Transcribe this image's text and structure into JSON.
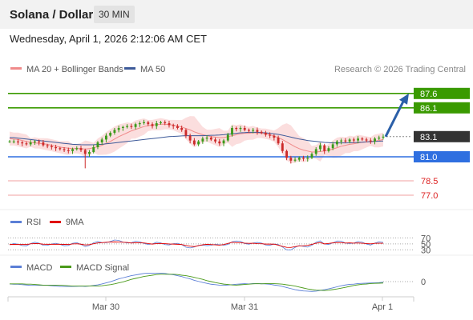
{
  "header": {
    "title": "Solana / Dollar",
    "interval": "30 MIN",
    "datetime": "Wednesday, April 1, 2026 2:12:06 AM CET"
  },
  "legend": [
    {
      "label": "MA 20 + Bollinger Bands",
      "color": "#f08a8a"
    },
    {
      "label": "MA 50",
      "color": "#3d5a99"
    }
  ],
  "credit": "Research © 2026 Trading Central",
  "rsi_legend": [
    {
      "label": "RSI",
      "color": "#5b7fd6"
    },
    {
      "label": "9MA",
      "color": "#e00000"
    }
  ],
  "macd_legend": [
    {
      "label": "MACD",
      "color": "#5b7fd6"
    },
    {
      "label": "MACD Signal",
      "color": "#4a9a1a"
    }
  ],
  "colors": {
    "bull": "#3a9a1a",
    "bear": "#cc2a2a",
    "resistance": "#3a9a00",
    "pivot": "#2f6fe0",
    "support": "#f0a0a0",
    "support_text": "#dd2222",
    "last": "#333333",
    "arrow": "#2b5fa8",
    "band": "#f8c8c8"
  },
  "chart_data": {
    "type": "candlestick",
    "x_ticks": [
      "Mar 30",
      "Mar 31",
      "Apr 1"
    ],
    "ylim": [
      76,
      89
    ],
    "levels": [
      {
        "value": 87.6,
        "label": "87.6",
        "kind": "resistance"
      },
      {
        "value": 86.1,
        "label": "86.1",
        "kind": "resistance"
      },
      {
        "value": 83.1,
        "label": "83.1",
        "kind": "last"
      },
      {
        "value": 81.0,
        "label": "81.0",
        "kind": "pivot"
      },
      {
        "value": 78.5,
        "label": "78.5",
        "kind": "support"
      },
      {
        "value": 77.0,
        "label": "77.0",
        "kind": "support"
      }
    ],
    "close": [
      82.6,
      82.6,
      82.5,
      82.4,
      82.3,
      82.5,
      82.6,
      82.5,
      82.2,
      82.1,
      82.0,
      81.9,
      81.8,
      81.7,
      81.6,
      81.8,
      81.9,
      81.7,
      81.3,
      81.5,
      82.0,
      82.5,
      82.8,
      83.2,
      83.5,
      83.8,
      84.0,
      84.1,
      84.2,
      84.1,
      84.4,
      84.5,
      84.6,
      84.4,
      84.2,
      84.5,
      84.6,
      84.5,
      84.3,
      84.2,
      84.0,
      83.8,
      83.2,
      82.7,
      82.3,
      82.6,
      82.9,
      83.0,
      82.8,
      82.6,
      82.4,
      82.7,
      83.3,
      84.0,
      83.9,
      84.0,
      83.8,
      83.7,
      83.8,
      83.6,
      83.5,
      83.3,
      83.2,
      83.0,
      82.4,
      81.6,
      80.9,
      80.6,
      80.7,
      80.9,
      80.8,
      80.9,
      81.3,
      81.8,
      82.2,
      81.6,
      81.9,
      82.3,
      82.6,
      82.7,
      82.6,
      82.8,
      82.7,
      82.9,
      82.8,
      82.7,
      82.6,
      82.9,
      83.0,
      83.1
    ],
    "ma20": [
      82.9,
      82.85,
      82.8,
      82.7,
      82.6,
      82.5,
      82.45,
      82.4,
      82.35,
      82.3,
      82.2,
      82.1,
      82.0,
      81.95,
      81.9,
      81.85,
      81.85,
      81.85,
      81.8,
      81.85,
      81.95,
      82.05,
      82.2,
      82.4,
      82.6,
      82.85,
      83.1,
      83.3,
      83.5,
      83.7,
      83.85,
      84.0,
      84.15,
      84.25,
      84.3,
      84.35,
      84.4,
      84.4,
      84.35,
      84.3,
      84.2,
      84.1,
      83.95,
      83.8,
      83.6,
      83.45,
      83.3,
      83.2,
      83.1,
      83.05,
      83.0,
      83.0,
      83.1,
      83.2,
      83.3,
      83.4,
      83.45,
      83.45,
      83.5,
      83.5,
      83.45,
      83.4,
      83.3,
      83.15,
      83.0,
      82.8,
      82.55,
      82.3,
      82.05,
      81.85,
      81.7,
      81.6,
      81.5,
      81.5,
      81.55,
      81.6,
      81.7,
      81.8,
      81.95,
      82.1,
      82.2,
      82.3,
      82.35,
      82.45,
      82.5,
      82.55,
      82.6,
      82.65,
      82.7,
      82.8
    ],
    "ma50": [
      83.0,
      83.0,
      82.95,
      82.9,
      82.85,
      82.8,
      82.75,
      82.7,
      82.65,
      82.6,
      82.55,
      82.5,
      82.45,
      82.4,
      82.35,
      82.3,
      82.28,
      82.26,
      82.25,
      82.25,
      82.26,
      82.28,
      82.3,
      82.35,
      82.4,
      82.45,
      82.5,
      82.55,
      82.6,
      82.65,
      82.7,
      82.75,
      82.8,
      82.85,
      82.9,
      82.95,
      83.0,
      83.05,
      83.1,
      83.12,
      83.15,
      83.18,
      83.2,
      83.2,
      83.2,
      83.2,
      83.2,
      83.22,
      83.24,
      83.25,
      83.27,
      83.3,
      83.35,
      83.4,
      83.45,
      83.5,
      83.52,
      83.55,
      83.55,
      83.55,
      83.52,
      83.5,
      83.45,
      83.4,
      83.33,
      83.25,
      83.15,
      83.05,
      82.95,
      82.85,
      82.78,
      82.7,
      82.65,
      82.6,
      82.55,
      82.5,
      82.48,
      82.45,
      82.45,
      82.45,
      82.45,
      82.46,
      82.48,
      82.5,
      82.52,
      82.55,
      82.57,
      82.6,
      82.62,
      82.65
    ],
    "rsi_levels": [
      70,
      50,
      30
    ],
    "macd_levels": [
      0
    ]
  }
}
